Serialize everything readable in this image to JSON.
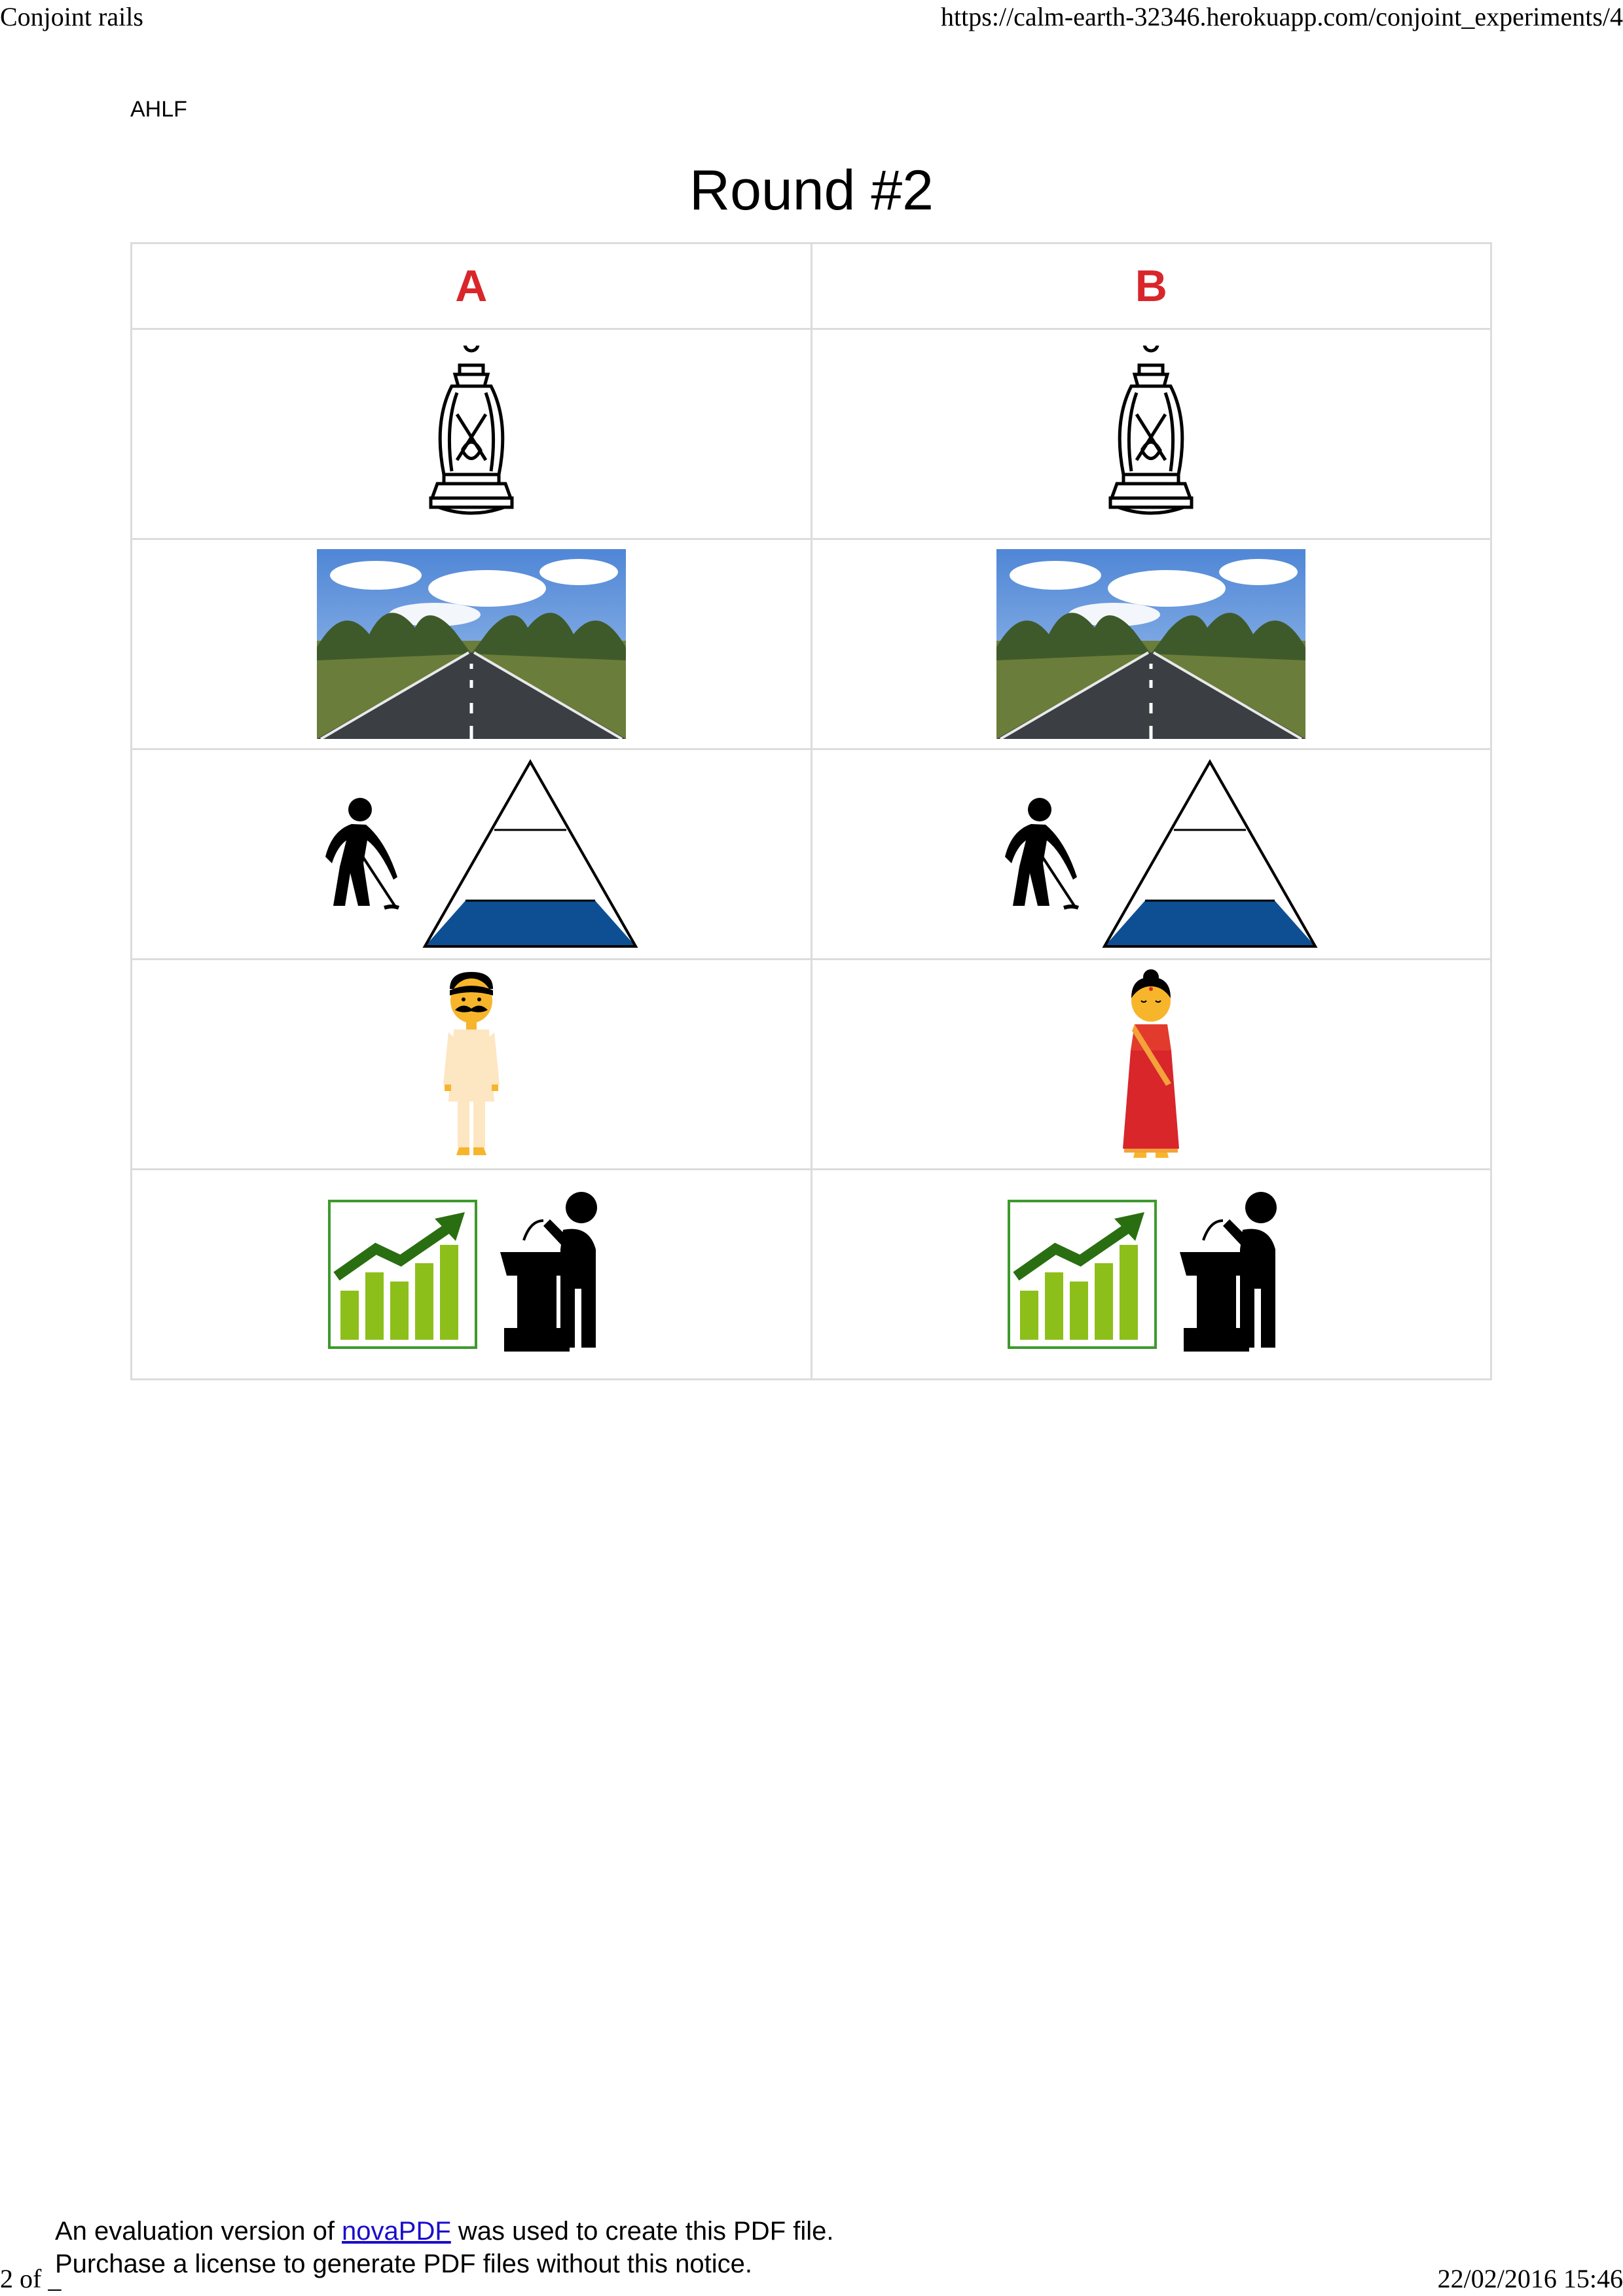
{
  "print_header": {
    "title": "Conjoint rails",
    "url": "https://calm-earth-32346.herokuapp.com/conjoint_experiments/4"
  },
  "user_label": "AHLF",
  "round_title": "Round #2",
  "columns": [
    {
      "label": "A",
      "label_color": "#d8262b"
    },
    {
      "label": "B",
      "label_color": "#d8262b"
    }
  ],
  "rows": [
    {
      "name": "party-symbol",
      "icons": [
        "lantern-icon",
        "lantern-icon"
      ]
    },
    {
      "name": "infrastructure",
      "icons": [
        "road-photo",
        "road-photo"
      ]
    },
    {
      "name": "caste-class",
      "icons": [
        "laborer-pyramid-icon",
        "laborer-pyramid-icon"
      ]
    },
    {
      "name": "gender",
      "icons": [
        "man-figure-icon",
        "woman-figure-icon"
      ]
    },
    {
      "name": "experience",
      "icons": [
        "growth-chart-speaker-icon",
        "growth-chart-speaker-icon"
      ]
    }
  ],
  "footer": {
    "notice_prefix": "An evaluation version of ",
    "notice_link": "novaPDF",
    "notice_suffix": " was used to create this PDF file.",
    "notice_line2": "Purchase a license to generate PDF files without this notice.",
    "page_count": "2 of _",
    "timestamp": "22/02/2016 15:46"
  }
}
